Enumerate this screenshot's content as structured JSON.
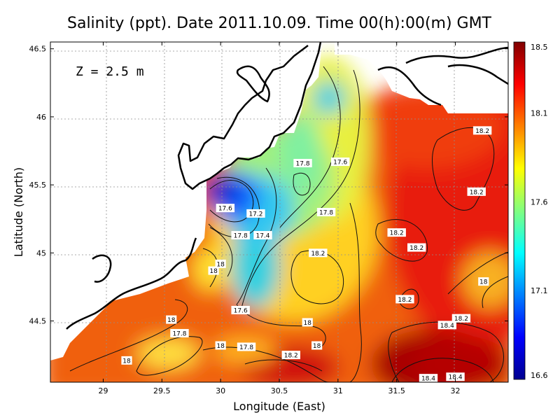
{
  "chart_data": {
    "type": "heatmap",
    "title": "Salinity (ppt). Date 2011.10.09. Time 00(h):00(m) GMT",
    "xlabel": "Longitude (East)",
    "ylabel": "Latitude (North)",
    "annotation": "Z = 2.5 m",
    "xlim": [
      28.55,
      32.45
    ],
    "ylim": [
      44.05,
      46.55
    ],
    "xticks": [
      "29",
      "29.5",
      "30",
      "30.5",
      "31",
      "31.5",
      "32"
    ],
    "yticks": [
      "44.5",
      "45",
      "45.5",
      "46",
      "46.5"
    ],
    "grid": true,
    "colorbar": {
      "min": 16.6,
      "max": 18.5,
      "ticks": [
        "18.5",
        "18.1",
        "17.6",
        "17.1",
        "16.6"
      ],
      "colormap": [
        "#00008f",
        "#0000ff",
        "#0080ff",
        "#00ffff",
        "#80ff80",
        "#ffff00",
        "#ff8000",
        "#ff0000",
        "#800000"
      ]
    },
    "contour_labels": [
      {
        "text": "18.2",
        "lon": 32.23,
        "lat": 45.9
      },
      {
        "text": "18.2",
        "lon": 32.18,
        "lat": 45.45
      },
      {
        "text": "17.6",
        "lon": 31.02,
        "lat": 45.67
      },
      {
        "text": "17.8",
        "lon": 30.7,
        "lat": 45.66
      },
      {
        "text": "17.8",
        "lon": 30.9,
        "lat": 45.3
      },
      {
        "text": "17.6",
        "lon": 30.04,
        "lat": 45.33
      },
      {
        "text": "17.2",
        "lon": 30.3,
        "lat": 45.29
      },
      {
        "text": "17.8",
        "lon": 30.17,
        "lat": 45.13
      },
      {
        "text": "17.4",
        "lon": 30.36,
        "lat": 45.13
      },
      {
        "text": "18.2",
        "lon": 31.5,
        "lat": 45.15
      },
      {
        "text": "18.2",
        "lon": 31.67,
        "lat": 45.04
      },
      {
        "text": "18.2",
        "lon": 30.83,
        "lat": 45.0
      },
      {
        "text": "18",
        "lon": 30.0,
        "lat": 44.92
      },
      {
        "text": "18",
        "lon": 29.94,
        "lat": 44.87
      },
      {
        "text": "18",
        "lon": 32.24,
        "lat": 44.79
      },
      {
        "text": "18.2",
        "lon": 31.57,
        "lat": 44.66
      },
      {
        "text": "17.6",
        "lon": 30.17,
        "lat": 44.58
      },
      {
        "text": "18.2",
        "lon": 32.05,
        "lat": 44.52
      },
      {
        "text": "18.4",
        "lon": 31.93,
        "lat": 44.47
      },
      {
        "text": "18",
        "lon": 30.74,
        "lat": 44.49
      },
      {
        "text": "18",
        "lon": 29.58,
        "lat": 44.51
      },
      {
        "text": "17.8",
        "lon": 29.65,
        "lat": 44.41
      },
      {
        "text": "18",
        "lon": 30.0,
        "lat": 44.32
      },
      {
        "text": "17.8",
        "lon": 30.22,
        "lat": 44.31
      },
      {
        "text": "18",
        "lon": 30.82,
        "lat": 44.32
      },
      {
        "text": "18.2",
        "lon": 30.6,
        "lat": 44.25
      },
      {
        "text": "18",
        "lon": 29.2,
        "lat": 44.21
      },
      {
        "text": "18.4",
        "lon": 31.77,
        "lat": 44.08
      },
      {
        "text": "18.4",
        "lon": 32.0,
        "lat": 44.09
      }
    ]
  }
}
